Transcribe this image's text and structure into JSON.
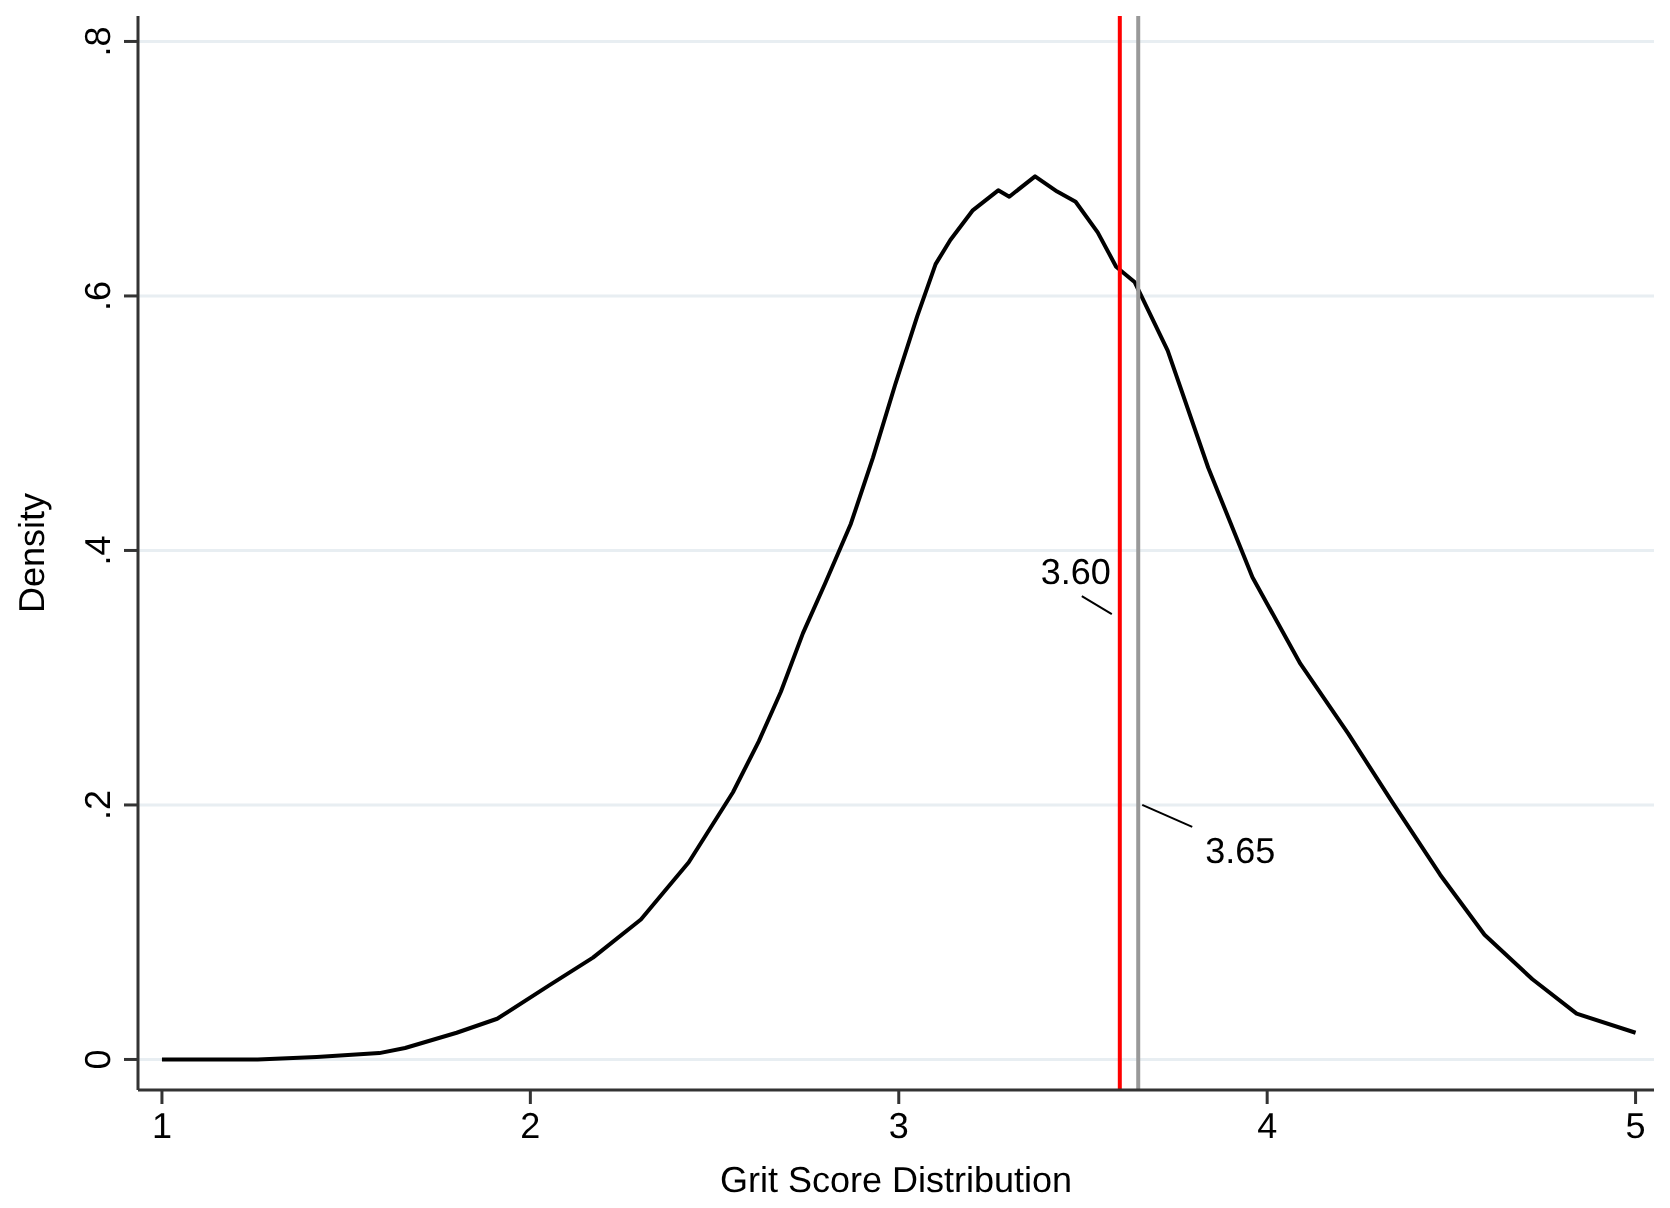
{
  "chart_data": {
    "type": "line",
    "xlabel": "Grit Score Distribution",
    "ylabel": "Density",
    "x": [
      1,
      1.26,
      1.42,
      1.59,
      1.66,
      1.8,
      1.91,
      2.05,
      2.17,
      2.3,
      2.43,
      2.55,
      2.62,
      2.68,
      2.74,
      2.8,
      2.87,
      2.93,
      2.99,
      3.05,
      3.1,
      3.14,
      3.2,
      3.27,
      3.3,
      3.37,
      3.43,
      3.48,
      3.54,
      3.59,
      3.64,
      3.73,
      3.84,
      3.96,
      4.09,
      4.22,
      4.34,
      4.47,
      4.59,
      4.72,
      4.84,
      5
    ],
    "series": [
      {
        "color": "#000000",
        "values": [
          0,
          0,
          0.002,
          0.005,
          0.009,
          0.021,
          0.032,
          0.058,
          0.08,
          0.11,
          0.155,
          0.21,
          0.25,
          0.289,
          0.335,
          0.374,
          0.421,
          0.473,
          0.53,
          0.584,
          0.625,
          0.644,
          0.667,
          0.683,
          0.678,
          0.694,
          0.682,
          0.674,
          0.65,
          0.623,
          0.611,
          0.557,
          0.465,
          0.379,
          0.311,
          0.256,
          0.202,
          0.145,
          0.098,
          0.063,
          0.036,
          0.021
        ]
      }
    ],
    "xlim": [
      0.935,
      5.05
    ],
    "ylim": [
      -0.024,
      0.82
    ],
    "xticks": [
      1,
      2,
      3,
      4,
      5
    ],
    "yticks": [
      0,
      {
        "value": 0.2,
        "label": ".2"
      },
      {
        "value": 0.4,
        "label": ".4"
      },
      {
        "value": 0.6,
        "label": ".6"
      },
      {
        "value": 0.8,
        "label": ".8"
      }
    ],
    "grid": "y",
    "marker": "none",
    "line_style": "solid",
    "ref_lines": [
      {
        "axis": "x",
        "value": 3.6,
        "label": "3.60",
        "color": "#ff0000"
      },
      {
        "axis": "x",
        "value": 3.65,
        "label": "3.65",
        "color": "#999999"
      }
    ]
  }
}
